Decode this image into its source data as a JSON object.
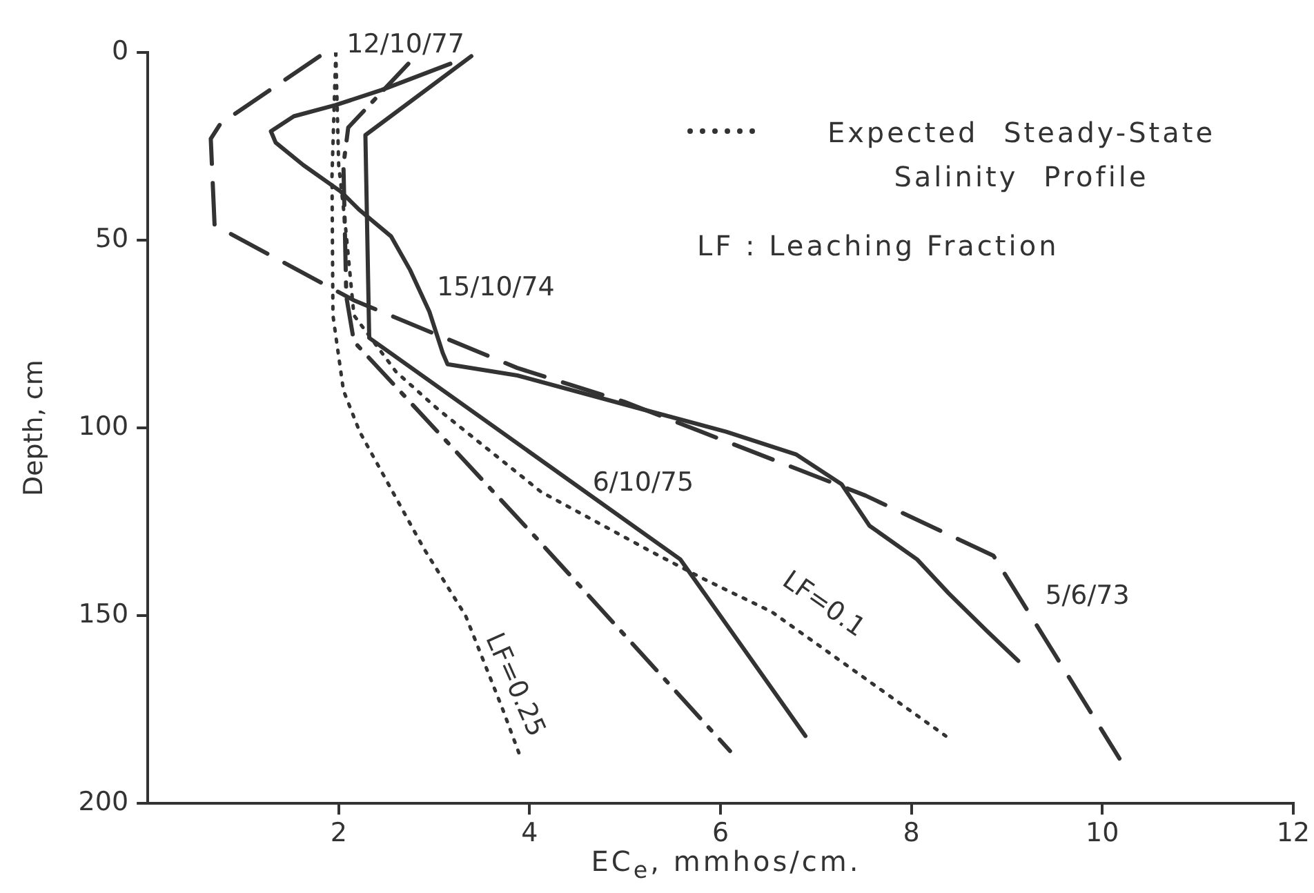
{
  "chart_data": {
    "type": "line",
    "xlabel": "EC$_{e}$, mmhos/cm.",
    "ylabel": "Depth, cm",
    "xlim": [
      0,
      12
    ],
    "xticks": [
      2,
      4,
      6,
      8,
      10,
      12
    ],
    "ylim": [
      200,
      0
    ],
    "yticks": [
      0,
      50,
      100,
      150,
      200
    ],
    "grid": false,
    "legend": false,
    "marker": "none",
    "annotations": [
      "Expected Steady-State Salinity Profile",
      "LF : Leaching Fraction"
    ],
    "series": [
      {
        "name": "12/10/77",
        "color": "#333333",
        "line_style": "dashdot",
        "x": [
          2.73,
          2.1,
          2.05,
          2.08,
          2.16,
          4.06,
          6.1
        ],
        "values": [
          3,
          20,
          30,
          65,
          77,
          129,
          186
        ]
      },
      {
        "name": "15/10/74",
        "color": "#333333",
        "line_style": "solid",
        "x": [
          3.17,
          2.45,
          1.97,
          1.53,
          1.29,
          1.34,
          1.63,
          2.02,
          2.22,
          2.55,
          2.75,
          2.95,
          3.09,
          3.14,
          3.87,
          5.18,
          6.06,
          6.79,
          7.27,
          7.56,
          8.06,
          8.39,
          8.79,
          9.12
        ],
        "values": [
          3,
          10,
          14,
          17,
          21,
          24,
          30,
          37,
          42,
          49,
          58,
          69,
          80,
          83,
          86,
          95,
          101,
          107,
          115,
          126,
          135,
          144,
          154,
          162
        ]
      },
      {
        "name": "6/10/75",
        "color": "#333333",
        "line_style": "solid",
        "x": [
          3.39,
          2.28,
          2.32,
          5.58,
          6.89
        ],
        "values": [
          1,
          22,
          76,
          135,
          182
        ]
      },
      {
        "name": "5/6/73",
        "color": "#333333",
        "line_style": "dashed",
        "x": [
          1.8,
          0.76,
          0.66,
          0.7,
          2.16,
          3.87,
          4.99,
          7.52,
          8.86,
          10.18
        ],
        "values": [
          1,
          19,
          23,
          46,
          66,
          84,
          93,
          118,
          134,
          188
        ]
      },
      {
        "name": "LF=0.25",
        "color": "#333333",
        "line_style": "dotted",
        "x": [
          1.97,
          1.93,
          1.94,
          2.05,
          2.22,
          2.89,
          3.33,
          3.72,
          3.91
        ],
        "values": [
          0,
          33,
          70,
          90,
          101,
          132,
          150,
          175,
          188
        ]
      },
      {
        "name": "LF=0.1",
        "color": "#333333",
        "line_style": "dotted",
        "x": [
          1.97,
          2.0,
          2.07,
          2.16,
          2.6,
          3.04,
          4.12,
          5.28,
          5.81,
          6.54,
          8.36
        ],
        "values": [
          0,
          30,
          46,
          70,
          85,
          95,
          117,
          133,
          140,
          149,
          182
        ]
      }
    ]
  }
}
